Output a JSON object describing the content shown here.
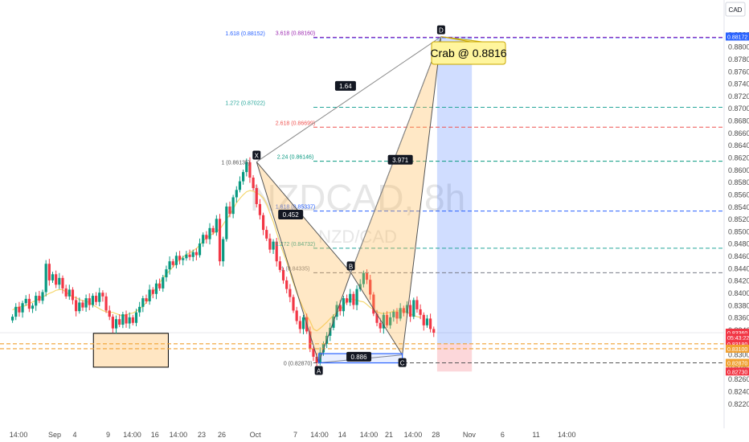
{
  "chart_data": {
    "type": "candlestick",
    "symbol": "NZDCAD, 8h",
    "symbol_sub": "NZD/CAD",
    "currency": "CAD",
    "ylim": [
      0.8195,
      0.884
    ],
    "y_ticks": [
      0.882,
      0.88,
      0.878,
      0.876,
      0.874,
      0.872,
      0.87,
      0.868,
      0.866,
      0.864,
      0.862,
      0.86,
      0.858,
      0.856,
      0.854,
      0.852,
      0.85,
      0.848,
      0.846,
      0.844,
      0.842,
      0.84,
      0.838,
      0.836,
      0.834,
      0.832,
      0.83,
      0.828,
      0.826,
      0.824,
      0.822
    ],
    "x_ticks": [
      {
        "label": "14:00",
        "t": -5.4
      },
      {
        "label": "Sep",
        "t": 0
      },
      {
        "label": "4",
        "t": 3
      },
      {
        "label": "9",
        "t": 8
      },
      {
        "label": "14:00",
        "t": 11.6
      },
      {
        "label": "16",
        "t": 15
      },
      {
        "label": "14:00",
        "t": 18.5
      },
      {
        "label": "23",
        "t": 22
      },
      {
        "label": "26",
        "t": 25
      },
      {
        "label": "Oct",
        "t": 30
      },
      {
        "label": "7",
        "t": 36
      },
      {
        "label": "14:00",
        "t": 39.6
      },
      {
        "label": "14",
        "t": 43
      },
      {
        "label": "14:00",
        "t": 47
      },
      {
        "label": "21",
        "t": 50
      },
      {
        "label": "14:00",
        "t": 53.6
      },
      {
        "label": "28",
        "t": 57
      },
      {
        "label": "Nov",
        "t": 62
      },
      {
        "label": "6",
        "t": 67
      },
      {
        "label": "11",
        "t": 72
      },
      {
        "label": "14:00",
        "t": 76.6
      }
    ],
    "close_series": [
      0.8362,
      0.8378,
      0.8369,
      0.8384,
      0.8391,
      0.8375,
      0.838,
      0.8396,
      0.8388,
      0.8402,
      0.8448,
      0.8421,
      0.8431,
      0.8414,
      0.8425,
      0.8408,
      0.8395,
      0.8406,
      0.8389,
      0.8371,
      0.8385,
      0.8377,
      0.8392,
      0.8381,
      0.8396,
      0.8386,
      0.8401,
      0.8395,
      0.8372,
      0.8362,
      0.8343,
      0.8358,
      0.8349,
      0.8366,
      0.8351,
      0.8361,
      0.8352,
      0.8369,
      0.8378,
      0.8392,
      0.8387,
      0.8406,
      0.8399,
      0.8416,
      0.8408,
      0.8426,
      0.8439,
      0.8452,
      0.8446,
      0.8461,
      0.8454,
      0.8457,
      0.8463,
      0.8459,
      0.8467,
      0.8462,
      0.8481,
      0.8495,
      0.8488,
      0.8506,
      0.8499,
      0.8521,
      0.8452,
      0.8488,
      0.8541,
      0.8529,
      0.8556,
      0.8568,
      0.8582,
      0.8597,
      0.8613,
      0.8588,
      0.8571,
      0.8545,
      0.8527,
      0.8503,
      0.8489,
      0.8471,
      0.8484,
      0.8452,
      0.8438,
      0.8421,
      0.8407,
      0.8394,
      0.8372,
      0.8355,
      0.8342,
      0.8361,
      0.8338,
      0.831,
      0.8297,
      0.8287,
      0.8304,
      0.8318,
      0.8331,
      0.8344,
      0.8362,
      0.8381,
      0.8371,
      0.8392,
      0.8385,
      0.8399,
      0.8381,
      0.8407,
      0.8415,
      0.8433,
      0.8422,
      0.8398,
      0.8367,
      0.8352,
      0.8343,
      0.8365,
      0.8348,
      0.8361,
      0.837,
      0.8359,
      0.8376,
      0.8368,
      0.8381,
      0.8362,
      0.8389,
      0.8374,
      0.8365,
      0.8348,
      0.8359,
      0.8342,
      0.8336
    ],
    "sma_series": [
      0.8373,
      0.8376,
      0.8378,
      0.8379,
      0.838,
      0.8383,
      0.8386,
      0.8388,
      0.8392,
      0.8394,
      0.8397,
      0.84,
      0.8402,
      0.8405,
      0.8406,
      0.8406,
      0.8402,
      0.8398,
      0.8394,
      0.8393,
      0.839,
      0.8388,
      0.8387,
      0.8385,
      0.8381,
      0.8378,
      0.8375,
      0.8372,
      0.837,
      0.8369,
      0.8369,
      0.8367,
      0.8365,
      0.8363,
      0.8365,
      0.8367,
      0.8368,
      0.8371,
      0.8375,
      0.8379,
      0.8385,
      0.8393,
      0.8401,
      0.841,
      0.8417,
      0.8425,
      0.8431,
      0.8437,
      0.8443,
      0.845,
      0.8455,
      0.8459,
      0.8463,
      0.8466,
      0.8469,
      0.8473,
      0.8478,
      0.8485,
      0.849,
      0.8494,
      0.8497,
      0.8501,
      0.8504,
      0.8512,
      0.852,
      0.8528,
      0.8537,
      0.8547,
      0.8554,
      0.856,
      0.8565,
      0.8567,
      0.8566,
      0.8563,
      0.856,
      0.8555,
      0.8545,
      0.853,
      0.8516,
      0.8499,
      0.8481,
      0.8466,
      0.8451,
      0.8434,
      0.8417,
      0.8401,
      0.8388,
      0.8375,
      0.8364,
      0.8355,
      0.8342,
      0.8339,
      0.8343,
      0.8348,
      0.8353,
      0.8359,
      0.8364,
      0.8369,
      0.8373,
      0.838,
      0.8388,
      0.8391,
      0.839,
      0.8389,
      0.8387,
      0.8386,
      0.8382,
      0.8377,
      0.8374,
      0.837,
      0.8368,
      0.8367,
      0.8368,
      0.8369,
      0.8371,
      0.8371,
      0.8372,
      0.8371,
      0.8369,
      0.8367,
      0.8364,
      0.8362,
      0.8361
    ],
    "pattern": {
      "name": "Crab @ 0.8816",
      "points": [
        {
          "label": "X",
          "t": 30.2,
          "price": 0.86135,
          "text": "1 (0.86135)"
        },
        {
          "label": "A",
          "t": 39.5,
          "price": 0.8287,
          "text": "0 (0.82870)"
        },
        {
          "label": "B",
          "t": 44.3,
          "price": 0.84335,
          "text": ""
        },
        {
          "label": "C",
          "t": 52.0,
          "price": 0.83,
          "text": ""
        },
        {
          "label": "D",
          "t": 57.8,
          "price": 0.8817,
          "text": ""
        }
      ],
      "ratios": [
        {
          "text": "1.64",
          "t": 43.5,
          "price": 0.8737
        },
        {
          "text": "0.452",
          "t": 35.3,
          "price": 0.8528
        },
        {
          "text": "3.971",
          "t": 51.7,
          "price": 0.8617
        },
        {
          "text": "0.886",
          "t": 45.5,
          "price": 0.8297
        }
      ]
    },
    "fib_levels": [
      {
        "text": "1.618 (0.88152)",
        "price": 0.88152,
        "t0": 28.5,
        "color": "#2962ff"
      },
      {
        "text": "3.618 (0.88160)",
        "price": 0.8816,
        "t0": 36.0,
        "color": "#9c27b0"
      },
      {
        "text": "1.272 (0.87022)",
        "price": 0.87022,
        "t0": 28.5,
        "color": "#26a69a"
      },
      {
        "text": "2.618 (0.86699)",
        "price": 0.86699,
        "t0": 36.0,
        "color": "#ef5350"
      },
      {
        "text": "2.24 (0.86146)",
        "price": 0.86146,
        "t0": 36.0,
        "color": "#089981"
      },
      {
        "text": "1.618 (0.85337)",
        "price": 0.85337,
        "t0": 36.0,
        "color": "#2962ff"
      },
      {
        "text": "1.272 (0.84732)",
        "price": 0.84732,
        "t0": 36.0,
        "color": "#26a69a"
      },
      {
        "text": "1 (0.84335)",
        "price": 0.84335,
        "t0": 36.0,
        "color": "#787b86"
      }
    ],
    "price_labels": [
      {
        "text": "0.88172",
        "price": 0.88172,
        "color": "#2962ff"
      },
      {
        "text": "0.83360",
        "price": 0.8336,
        "color": "#f23645"
      },
      {
        "text": "05:43:22",
        "price": 0.8328,
        "color": "#f23645"
      },
      {
        "text": "0.83180",
        "price": 0.8318,
        "color": "#f23645"
      },
      {
        "text": "0.83100",
        "price": 0.831,
        "color": "#f0a030"
      },
      {
        "text": "0.82870",
        "price": 0.8287,
        "color": "#f0a030"
      },
      {
        "text": "0.82730",
        "price": 0.8273,
        "color": "#f23645"
      }
    ],
    "support_zone": {
      "t0": 5.8,
      "t1": 17.0,
      "price_top": 0.8335,
      "price_bottom": 0.828
    },
    "orange_levels": [
      0.8318,
      0.831
    ],
    "position": {
      "t0": 57.2,
      "t1": 62.4,
      "target": 0.88172,
      "entry": 0.8318,
      "stop": 0.8273
    }
  }
}
